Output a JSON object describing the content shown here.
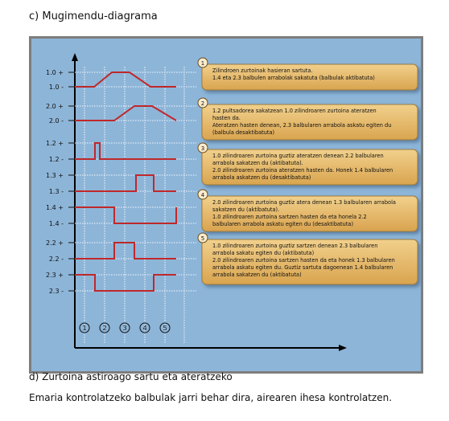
{
  "heading_c": "c) Mugimendu-diagrama",
  "heading_d": "d) Zurtoina astiroago sartu eta ateratzeko",
  "paragraph": "Emaria kontrolatzeko balbulak jarri behar dira, airearen ihesa kontrolatzen.",
  "colors": {
    "panel": "#8db5d8",
    "signal": "#c0282a",
    "box_fill": "#e8ba66",
    "axis": "#000000"
  },
  "signals": [
    {
      "plus": "1.0 +",
      "minus": "1.0 -",
      "levels": [
        0,
        1,
        1,
        0,
        0
      ],
      "ramp": true
    },
    {
      "plus": "2.0 +",
      "minus": "2.0 -",
      "levels": [
        0,
        0,
        1,
        1,
        0
      ],
      "ramp": true
    },
    {
      "plus": "1.2 +",
      "minus": "1.2 -",
      "pulse": true
    },
    {
      "plus": "1.3 +",
      "minus": "1.3 -",
      "levels": [
        0,
        0,
        0,
        1,
        0
      ]
    },
    {
      "plus": "1.4 +",
      "minus": "1.4 -",
      "levels": [
        1,
        1,
        0,
        0,
        0
      ],
      "rise_end": true
    },
    {
      "plus": "2.2 +",
      "minus": "2.2 -",
      "levels": [
        0,
        0,
        1,
        0,
        0
      ]
    },
    {
      "plus": "2.3 +",
      "minus": "2.3 -",
      "levels": [
        1,
        0,
        0,
        1,
        1
      ]
    }
  ],
  "steps": [
    "1",
    "2",
    "3",
    "4",
    "5"
  ],
  "notes": [
    {
      "num": "1",
      "lines": [
        "Zilindroen zurtoinak hasieran sartuta.",
        "1.4 eta 2.3 balbulen arrabolak sakatuta (balbulak aktibatuta)"
      ]
    },
    {
      "num": "2",
      "lines": [
        "1.2 pultsadorea sakatzean 1.0 zilindroaren zurtoina ateratzen",
        "hasten da.",
        "Ateratzen hasten denean, 2.3 balbularen arrabola askatu egiten du",
        "(balbula desaktibatuta)"
      ]
    },
    {
      "num": "3",
      "lines": [
        "1.0 zilindroaren zurtoina guztiz ateratzen denean 2.2 balbularen",
        "arrabola sakatzen du (aktibatuta).",
        "2.0 zilindroaren zurtoina ateratzen hasten da. Honek 1.4 balbularen",
        "arrabola askatzen du (desaktibatuta)"
      ]
    },
    {
      "num": "4",
      "lines": [
        "2.0 zilindroaren zurtoina guztiz atera denean 1.3 balbularen arrabola",
        "sakatzen du (aktibatuta).",
        "1.0 zilindroaren zurtoina sartzen hasten da eta honela 2.2",
        "balbularen arrabola askatu egiten du (desaktibatuta)"
      ]
    },
    {
      "num": "5",
      "lines": [
        "1.0 zilindroaren zurtoina guztiz sartzen denean 2.3 balbularen",
        "arrabola sakatu egiten du (aktibatuta)",
        "2.0 zilindroaren zurtoina sartzen hasten da eta honek 1.3 balbularen",
        "arrabola askatu egiten du. Guztiz sartuta dagoenean 1.4 balbularen",
        "arrabola sakatzen du (aktibatuta)"
      ]
    }
  ]
}
